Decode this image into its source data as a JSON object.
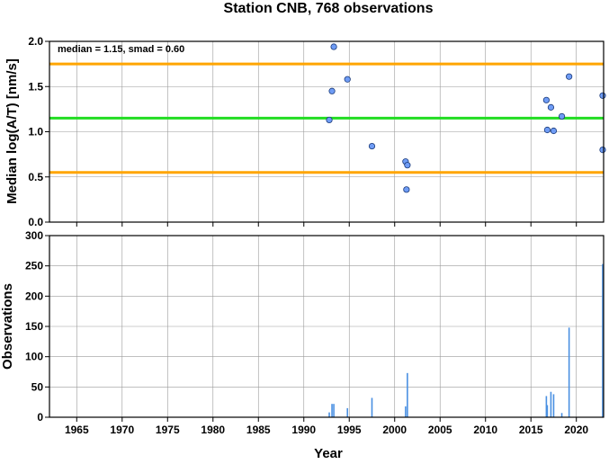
{
  "chart_data": [
    {
      "type": "scatter",
      "title": "Station CNB, 768 observations",
      "xlabel": "",
      "ylabel": "Median log(A/T) [nm/s]",
      "xlim": [
        1962,
        2023
      ],
      "ylim": [
        0,
        2.0
      ],
      "x_ticks": [
        "1965",
        "1970",
        "1975",
        "1980",
        "1985",
        "1990",
        "1995",
        "2000",
        "2005",
        "2010",
        "2015",
        "2020"
      ],
      "x_tick_values": [
        1965,
        1970,
        1975,
        1980,
        1985,
        1990,
        1995,
        2000,
        2005,
        2010,
        2015,
        2020
      ],
      "y_ticks": [
        "0.0",
        "0.5",
        "1.0",
        "1.5",
        "2.0"
      ],
      "y_tick_values": [
        0,
        0.5,
        1.0,
        1.5,
        2.0
      ],
      "grid": true,
      "annotation": "median = 1.15, smad = 0.60",
      "reference_lines": [
        {
          "y": 1.15,
          "color": "#22dd22"
        },
        {
          "y": 1.75,
          "color": "#ffa500"
        },
        {
          "y": 0.55,
          "color": "#ffa500"
        }
      ],
      "point_color": "#6f9cf5",
      "points": [
        {
          "x": 1992.8,
          "y": 1.13
        },
        {
          "x": 1993.1,
          "y": 1.45
        },
        {
          "x": 1993.3,
          "y": 1.94
        },
        {
          "x": 1994.8,
          "y": 1.58
        },
        {
          "x": 1997.5,
          "y": 0.84
        },
        {
          "x": 2001.2,
          "y": 0.67
        },
        {
          "x": 2001.3,
          "y": 0.36
        },
        {
          "x": 2001.4,
          "y": 0.63
        },
        {
          "x": 2016.7,
          "y": 1.35
        },
        {
          "x": 2016.8,
          "y": 1.02
        },
        {
          "x": 2017.2,
          "y": 1.27
        },
        {
          "x": 2017.5,
          "y": 1.01
        },
        {
          "x": 2018.4,
          "y": 1.17
        },
        {
          "x": 2019.2,
          "y": 1.61
        },
        {
          "x": 2022.9,
          "y": 1.4
        },
        {
          "x": 2022.9,
          "y": 0.8
        }
      ]
    },
    {
      "type": "bar",
      "title": "",
      "xlabel": "Year",
      "ylabel": "Observations",
      "xlim": [
        1962,
        2023
      ],
      "ylim": [
        0,
        300
      ],
      "x_ticks": [
        "1965",
        "1970",
        "1975",
        "1980",
        "1985",
        "1990",
        "1995",
        "2000",
        "2005",
        "2010",
        "2015",
        "2020"
      ],
      "x_tick_values": [
        1965,
        1970,
        1975,
        1980,
        1985,
        1990,
        1995,
        2000,
        2005,
        2010,
        2015,
        2020
      ],
      "y_ticks": [
        "0",
        "50",
        "100",
        "150",
        "200",
        "250",
        "300"
      ],
      "y_tick_values": [
        0,
        50,
        100,
        150,
        200,
        250,
        300
      ],
      "grid": true,
      "bar_color": "#4a90e2",
      "bars": [
        {
          "x": 1992.8,
          "value": 8
        },
        {
          "x": 1993.1,
          "value": 22
        },
        {
          "x": 1993.3,
          "value": 22
        },
        {
          "x": 1994.8,
          "value": 15
        },
        {
          "x": 1997.5,
          "value": 32
        },
        {
          "x": 2001.2,
          "value": 18
        },
        {
          "x": 2001.4,
          "value": 73
        },
        {
          "x": 2016.7,
          "value": 35
        },
        {
          "x": 2016.8,
          "value": 20
        },
        {
          "x": 2017.2,
          "value": 42
        },
        {
          "x": 2017.5,
          "value": 38
        },
        {
          "x": 2018.4,
          "value": 7
        },
        {
          "x": 2019.2,
          "value": 148
        },
        {
          "x": 2022.9,
          "value": 253
        }
      ]
    }
  ]
}
